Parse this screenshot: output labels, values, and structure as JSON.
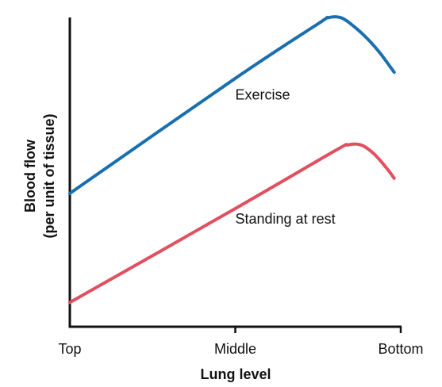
{
  "chart_data": {
    "type": "line",
    "xlabel": "Lung level",
    "ylabel_line1": "Blood flow",
    "ylabel_line2": "(per unit of tissue)",
    "x_ticks": [
      "Top",
      "Middle",
      "Bottom"
    ],
    "x_tick_values": [
      0,
      0.5,
      1
    ],
    "xlim": [
      0,
      1
    ],
    "ylim": [
      0,
      1
    ],
    "grid": false,
    "legend": "none",
    "series": [
      {
        "name": "Exercise",
        "color": "#1a6faf",
        "x": [
          0,
          0.5,
          0.75,
          0.78,
          0.82,
          0.86,
          0.9,
          0.94,
          0.98
        ],
        "y": [
          0.44,
          0.82,
          1.0,
          1.02,
          1.02,
          0.99,
          0.95,
          0.9,
          0.84
        ]
      },
      {
        "name": "Standing at rest",
        "color": "#e05060",
        "x": [
          0,
          0.5,
          0.8,
          0.84,
          0.88,
          0.92,
          0.96,
          0.98
        ],
        "y": [
          0.08,
          0.39,
          0.58,
          0.6,
          0.6,
          0.57,
          0.52,
          0.49
        ]
      }
    ],
    "annotations": [
      {
        "text": "Exercise",
        "x": 0.5,
        "y": 0.75
      },
      {
        "text": "Standing at rest",
        "x": 0.5,
        "y": 0.34
      }
    ]
  }
}
